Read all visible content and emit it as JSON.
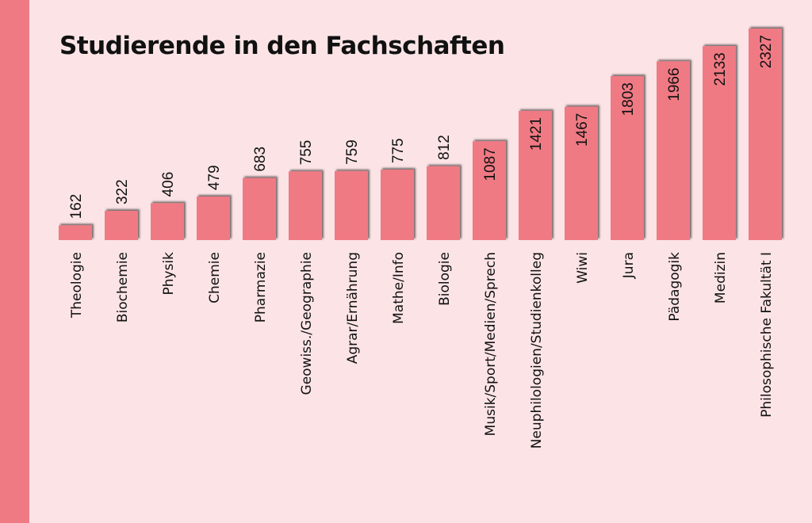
{
  "chart_data": {
    "type": "bar",
    "title": "Studierende in den Fachschaften",
    "xlabel": "",
    "ylabel": "",
    "categories": [
      "Theologie",
      "Biochemie",
      "Physik",
      "Chemie",
      "Pharmazie",
      "Geowiss./Geographie",
      "Agrar/Ernährung",
      "Mathe/Info",
      "Biologie",
      "Musik/Sport/Medien/Sprech",
      "Neuphilologien/Studienkolleg",
      "Wiwi",
      "Jura",
      "Pädagogik",
      "Medizin",
      "Philosophische Fakultät I"
    ],
    "values": [
      162,
      322,
      406,
      479,
      683,
      755,
      759,
      775,
      812,
      1087,
      1421,
      1467,
      1803,
      1966,
      2133,
      2327
    ],
    "ylim": [
      0,
      2327
    ],
    "grid": false,
    "data_labels": true
  },
  "colors": {
    "bar": "#f07a84",
    "background": "#fce4e6",
    "sidebar": "#f07a84",
    "text": "#111111"
  }
}
